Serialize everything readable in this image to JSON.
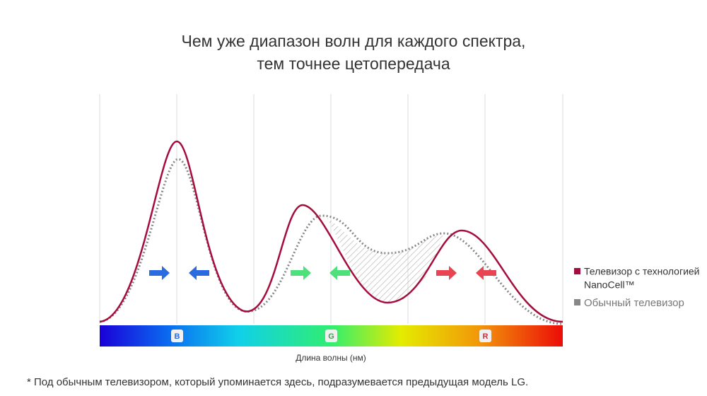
{
  "title": {
    "lines": [
      "Чем уже диапазон волн для каждого спектра,",
      "тем точнее цетопередача"
    ]
  },
  "bands": [
    "B",
    "G",
    "R"
  ],
  "x_axis_label": "Длина волны (нм)",
  "legend": [
    {
      "lines": [
        "Телевизор с технологией",
        "NanoCell™"
      ]
    },
    {
      "lines": [
        "Обычный телевизор"
      ]
    }
  ],
  "footnote": "* Под обычным телевизором, который упоминается здесь, подразумевается предыдущая модель LG."
}
